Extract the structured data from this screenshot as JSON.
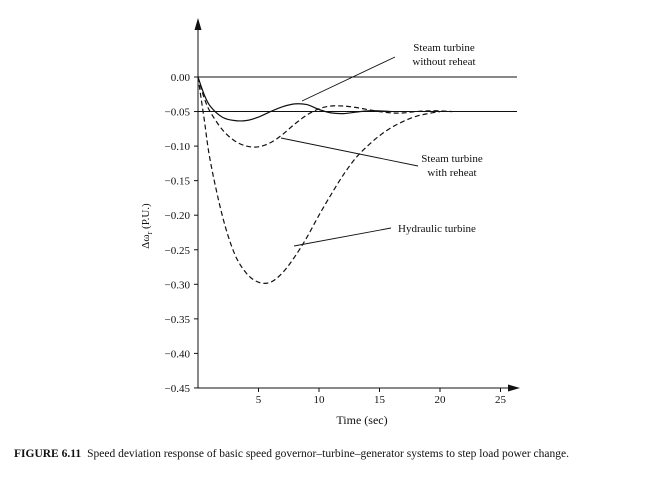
{
  "chart_data": {
    "type": "line",
    "xlabel": "Time (sec)",
    "ylabel": "Δω",
    "ylabel_sub": "r",
    "ylabel_unit": " (P.U.)",
    "xlim": [
      0,
      27
    ],
    "ylim": [
      -0.45,
      0.05
    ],
    "x_ticks": [
      5,
      10,
      15,
      20,
      25
    ],
    "y_ticks": [
      "0.00",
      "−0.05",
      "−0.10",
      "−0.15",
      "−0.20",
      "−0.25",
      "−0.30",
      "−0.35",
      "−0.40",
      "−0.45"
    ],
    "y_tick_values": [
      0,
      -0.05,
      -0.1,
      -0.15,
      -0.2,
      -0.25,
      -0.3,
      -0.35,
      -0.4,
      -0.45
    ],
    "reference_lines": [
      0,
      -0.05
    ],
    "series": [
      {
        "name": "Steam turbine without reheat",
        "style": "solid",
        "points": [
          [
            0,
            0
          ],
          [
            0.5,
            -0.025
          ],
          [
            1,
            -0.042
          ],
          [
            2,
            -0.058
          ],
          [
            3,
            -0.063
          ],
          [
            4,
            -0.063
          ],
          [
            5,
            -0.058
          ],
          [
            6,
            -0.05
          ],
          [
            7,
            -0.043
          ],
          [
            8,
            -0.039
          ],
          [
            9,
            -0.04
          ],
          [
            10,
            -0.047
          ],
          [
            11,
            -0.052
          ],
          [
            12,
            -0.053
          ],
          [
            13,
            -0.051
          ],
          [
            14,
            -0.049
          ],
          [
            15,
            -0.049
          ],
          [
            16,
            -0.05
          ]
        ]
      },
      {
        "name": "Steam turbine with reheat",
        "style": "dashed",
        "points": [
          [
            0,
            0
          ],
          [
            0.5,
            -0.03
          ],
          [
            1,
            -0.05
          ],
          [
            2,
            -0.076
          ],
          [
            3,
            -0.092
          ],
          [
            4,
            -0.1
          ],
          [
            5,
            -0.101
          ],
          [
            6,
            -0.095
          ],
          [
            7,
            -0.083
          ],
          [
            8,
            -0.068
          ],
          [
            9,
            -0.055
          ],
          [
            10,
            -0.046
          ],
          [
            11,
            -0.042
          ],
          [
            12,
            -0.042
          ],
          [
            13,
            -0.044
          ],
          [
            14,
            -0.047
          ],
          [
            15,
            -0.05
          ],
          [
            16,
            -0.052
          ],
          [
            17,
            -0.052
          ],
          [
            18,
            -0.05
          ],
          [
            19,
            -0.049
          ],
          [
            20,
            -0.049
          ],
          [
            21,
            -0.05
          ]
        ]
      },
      {
        "name": "Hydraulic turbine",
        "style": "dashed",
        "points": [
          [
            0,
            0
          ],
          [
            0.5,
            -0.06
          ],
          [
            1,
            -0.12
          ],
          [
            2,
            -0.2
          ],
          [
            3,
            -0.255
          ],
          [
            4,
            -0.284
          ],
          [
            5,
            -0.297
          ],
          [
            6,
            -0.297
          ],
          [
            7,
            -0.283
          ],
          [
            8,
            -0.26
          ],
          [
            9,
            -0.232
          ],
          [
            10,
            -0.2
          ],
          [
            11,
            -0.17
          ],
          [
            12,
            -0.142
          ],
          [
            13,
            -0.118
          ],
          [
            14,
            -0.1
          ],
          [
            15,
            -0.085
          ],
          [
            16,
            -0.073
          ],
          [
            17,
            -0.064
          ],
          [
            18,
            -0.057
          ],
          [
            19,
            -0.053
          ],
          [
            20,
            -0.05
          ]
        ]
      }
    ],
    "annotations": [
      {
        "lines": [
          "Steam turbine",
          "without reheat"
        ],
        "points_to": "Steam turbine without reheat"
      },
      {
        "lines": [
          "Steam turbine",
          "with reheat"
        ],
        "points_to": "Steam turbine with reheat"
      },
      {
        "lines": [
          "Hydraulic turbine"
        ],
        "points_to": "Hydraulic turbine"
      }
    ]
  },
  "caption": {
    "number": "FIGURE 6.11",
    "text": "Speed deviation response of basic speed governor–turbine–generator systems to step load power change."
  }
}
